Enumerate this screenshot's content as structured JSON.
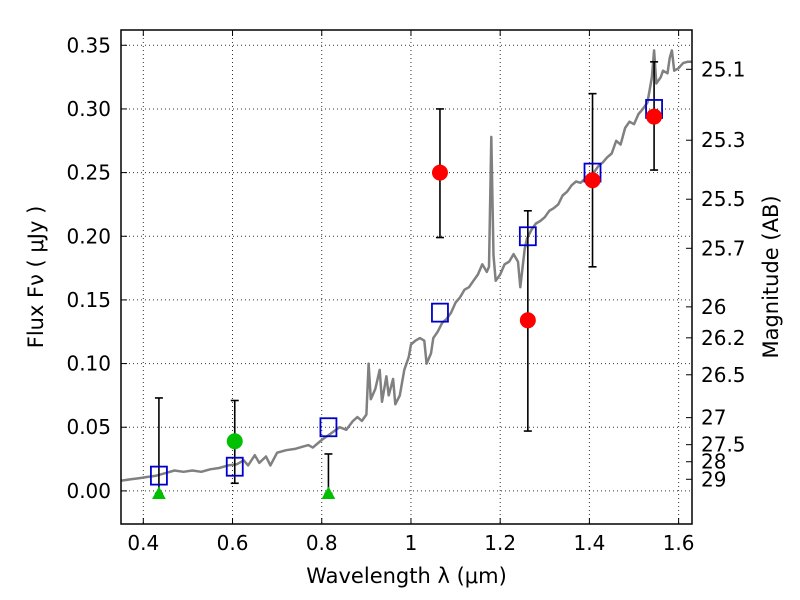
{
  "chart_data": {
    "type": "scatter",
    "xlabel": "Wavelength  λ (μm)",
    "ylabel_left": "Flux  Fν  ( μJy )",
    "ylabel_right": "Magnitude (AB)",
    "xlim": [
      0.35,
      1.63
    ],
    "ylim": [
      -0.026,
      0.362
    ],
    "grid": true,
    "x_ticks": [
      {
        "value": 0.4,
        "label": "0.4"
      },
      {
        "value": 0.6,
        "label": "0.6"
      },
      {
        "value": 0.8,
        "label": "0.8"
      },
      {
        "value": 1.0,
        "label": "1"
      },
      {
        "value": 1.2,
        "label": "1.2"
      },
      {
        "value": 1.4,
        "label": "1.4"
      },
      {
        "value": 1.6,
        "label": "1.6"
      }
    ],
    "y_ticks": [
      {
        "value": 0.0,
        "label": "0.00"
      },
      {
        "value": 0.05,
        "label": "0.05"
      },
      {
        "value": 0.1,
        "label": "0.10"
      },
      {
        "value": 0.15,
        "label": "0.15"
      },
      {
        "value": 0.2,
        "label": "0.20"
      },
      {
        "value": 0.25,
        "label": "0.25"
      },
      {
        "value": 0.3,
        "label": "0.30"
      },
      {
        "value": 0.35,
        "label": "0.35"
      }
    ],
    "right_ticks": [
      {
        "mag": 25.1,
        "label": "25.1"
      },
      {
        "mag": 25.3,
        "label": "25.3"
      },
      {
        "mag": 25.5,
        "label": "25.5"
      },
      {
        "mag": 25.7,
        "label": "25.7"
      },
      {
        "mag": 26.0,
        "label": "26"
      },
      {
        "mag": 26.2,
        "label": "26.2"
      },
      {
        "mag": 26.5,
        "label": "26.5"
      },
      {
        "mag": 27.0,
        "label": "27"
      },
      {
        "mag": 27.5,
        "label": "27.5"
      },
      {
        "mag": 28.0,
        "label": "28"
      },
      {
        "mag": 29.0,
        "label": "29"
      }
    ],
    "series": [
      {
        "kind": "spectrum",
        "color": "#808080",
        "points": [
          [
            0.35,
            0.008
          ],
          [
            0.37,
            0.009
          ],
          [
            0.39,
            0.01
          ],
          [
            0.41,
            0.011
          ],
          [
            0.43,
            0.012
          ],
          [
            0.45,
            0.014
          ],
          [
            0.47,
            0.016
          ],
          [
            0.49,
            0.015
          ],
          [
            0.51,
            0.016
          ],
          [
            0.53,
            0.015
          ],
          [
            0.55,
            0.017
          ],
          [
            0.57,
            0.018
          ],
          [
            0.59,
            0.02
          ],
          [
            0.61,
            0.021
          ],
          [
            0.625,
            0.024
          ],
          [
            0.635,
            0.02
          ],
          [
            0.65,
            0.028
          ],
          [
            0.66,
            0.022
          ],
          [
            0.675,
            0.027
          ],
          [
            0.685,
            0.02
          ],
          [
            0.7,
            0.03
          ],
          [
            0.72,
            0.032
          ],
          [
            0.74,
            0.033
          ],
          [
            0.76,
            0.035
          ],
          [
            0.77,
            0.036
          ],
          [
            0.78,
            0.034
          ],
          [
            0.8,
            0.04
          ],
          [
            0.82,
            0.045
          ],
          [
            0.84,
            0.05
          ],
          [
            0.855,
            0.048
          ],
          [
            0.87,
            0.055
          ],
          [
            0.88,
            0.058
          ],
          [
            0.89,
            0.055
          ],
          [
            0.9,
            0.06
          ],
          [
            0.905,
            0.1
          ],
          [
            0.91,
            0.072
          ],
          [
            0.92,
            0.08
          ],
          [
            0.93,
            0.095
          ],
          [
            0.935,
            0.07
          ],
          [
            0.945,
            0.09
          ],
          [
            0.95,
            0.075
          ],
          [
            0.96,
            0.088
          ],
          [
            0.965,
            0.068
          ],
          [
            0.975,
            0.075
          ],
          [
            0.985,
            0.095
          ],
          [
            0.995,
            0.105
          ],
          [
            1.0,
            0.115
          ],
          [
            1.01,
            0.118
          ],
          [
            1.02,
            0.12
          ],
          [
            1.03,
            0.118
          ],
          [
            1.035,
            0.1
          ],
          [
            1.045,
            0.108
          ],
          [
            1.05,
            0.12
          ],
          [
            1.06,
            0.125
          ],
          [
            1.07,
            0.132
          ],
          [
            1.08,
            0.135
          ],
          [
            1.09,
            0.14
          ],
          [
            1.1,
            0.148
          ],
          [
            1.11,
            0.152
          ],
          [
            1.12,
            0.158
          ],
          [
            1.13,
            0.16
          ],
          [
            1.14,
            0.165
          ],
          [
            1.15,
            0.17
          ],
          [
            1.16,
            0.178
          ],
          [
            1.165,
            0.175
          ],
          [
            1.17,
            0.172
          ],
          [
            1.175,
            0.176
          ],
          [
            1.18,
            0.278
          ],
          [
            1.185,
            0.185
          ],
          [
            1.19,
            0.165
          ],
          [
            1.2,
            0.17
          ],
          [
            1.21,
            0.178
          ],
          [
            1.22,
            0.18
          ],
          [
            1.23,
            0.186
          ],
          [
            1.24,
            0.18
          ],
          [
            1.245,
            0.16
          ],
          [
            1.25,
            0.175
          ],
          [
            1.255,
            0.19
          ],
          [
            1.26,
            0.198
          ],
          [
            1.27,
            0.205
          ],
          [
            1.28,
            0.21
          ],
          [
            1.29,
            0.212
          ],
          [
            1.3,
            0.215
          ],
          [
            1.31,
            0.22
          ],
          [
            1.32,
            0.222
          ],
          [
            1.33,
            0.225
          ],
          [
            1.34,
            0.232
          ],
          [
            1.35,
            0.235
          ],
          [
            1.36,
            0.24
          ],
          [
            1.37,
            0.243
          ],
          [
            1.38,
            0.242
          ],
          [
            1.39,
            0.245
          ],
          [
            1.4,
            0.248
          ],
          [
            1.41,
            0.25
          ],
          [
            1.42,
            0.255
          ],
          [
            1.43,
            0.258
          ],
          [
            1.44,
            0.262
          ],
          [
            1.45,
            0.265
          ],
          [
            1.46,
            0.275
          ],
          [
            1.47,
            0.272
          ],
          [
            1.48,
            0.285
          ],
          [
            1.49,
            0.29
          ],
          [
            1.5,
            0.288
          ],
          [
            1.51,
            0.296
          ],
          [
            1.52,
            0.3
          ],
          [
            1.53,
            0.305
          ],
          [
            1.54,
            0.325
          ],
          [
            1.545,
            0.346
          ],
          [
            1.55,
            0.32
          ],
          [
            1.56,
            0.325
          ],
          [
            1.565,
            0.33
          ],
          [
            1.575,
            0.328
          ],
          [
            1.58,
            0.34
          ],
          [
            1.585,
            0.346
          ],
          [
            1.59,
            0.33
          ],
          [
            1.6,
            0.332
          ],
          [
            1.61,
            0.336
          ],
          [
            1.62,
            0.337
          ],
          [
            1.63,
            0.337
          ]
        ]
      },
      {
        "kind": "model_square",
        "color": "#0000cc",
        "points": [
          [
            0.435,
            0.012
          ],
          [
            0.605,
            0.019
          ],
          [
            0.815,
            0.05
          ],
          [
            1.065,
            0.14
          ],
          [
            1.262,
            0.2
          ],
          [
            1.407,
            0.25
          ],
          [
            1.545,
            0.3
          ]
        ]
      },
      {
        "kind": "detection_red",
        "color": "#ff0000",
        "points": [
          {
            "x": 1.065,
            "y": 0.25,
            "ylo": 0.199,
            "yhi": 0.3
          },
          {
            "x": 1.262,
            "y": 0.134,
            "ylo": 0.047,
            "yhi": 0.22
          },
          {
            "x": 1.407,
            "y": 0.244,
            "ylo": 0.176,
            "yhi": 0.312
          },
          {
            "x": 1.545,
            "y": 0.294,
            "ylo": 0.252,
            "yhi": 0.337
          }
        ]
      },
      {
        "kind": "detection_green",
        "color": "#00c000",
        "points": [
          {
            "x": 0.605,
            "y": 0.039,
            "ylo": 0.006,
            "yhi": 0.071
          }
        ]
      },
      {
        "kind": "upper_limit_green",
        "color": "#00c000",
        "points": [
          {
            "x": 0.435,
            "y": -0.002,
            "ylo": -0.002,
            "yhi": 0.073
          },
          {
            "x": 0.815,
            "y": -0.002,
            "ylo": -0.002,
            "yhi": 0.029
          }
        ]
      }
    ]
  }
}
